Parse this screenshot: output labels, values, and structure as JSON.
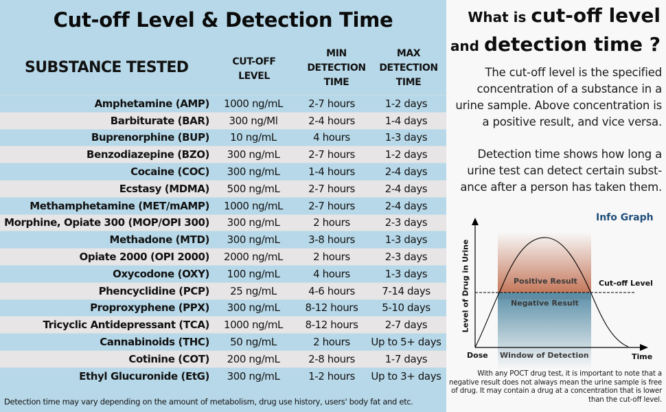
{
  "left_panel": {
    "title": "Cut-off Level & Detection Time",
    "headers": {
      "substance": "SUBSTANCE TESTED",
      "cutoff": [
        "CUT-OFF",
        "LEVEL"
      ],
      "min": [
        "MIN",
        "DETECTION",
        "TIME"
      ],
      "max": [
        "MAX",
        "DETECTION",
        "TIME"
      ]
    },
    "rows": [
      {
        "substance": "Amphetamine (AMP)",
        "cutoff": "1000 ng/mL",
        "min": "2-7 hours",
        "max": "1-2 days"
      },
      {
        "substance": "Barbiturate (BAR)",
        "cutoff": "300 ng/Ml",
        "min": "2-4 hours",
        "max": "1-4 days"
      },
      {
        "substance": "Buprenorphine (BUP)",
        "cutoff": "10 ng/mL",
        "min": "4 hours",
        "max": "1-3 days"
      },
      {
        "substance": "Benzodiazepine (BZO)",
        "cutoff": "300 ng/mL",
        "min": "2-7 hours",
        "max": "1-2 days"
      },
      {
        "substance": "Cocaine (COC)",
        "cutoff": "300 ng/mL",
        "min": "1-4 hours",
        "max": "2-4 days"
      },
      {
        "substance": "Ecstasy (MDMA)",
        "cutoff": "500 ng/mL",
        "min": "2-7 hours",
        "max": "2-4 days"
      },
      {
        "substance": "Methamphetamine (MET/mAMP)",
        "cutoff": "1000 ng/mL",
        "min": "2-7 hours",
        "max": "2-4 days"
      },
      {
        "substance": "Morphine, Opiate 300 (MOP/OPI 300)",
        "cutoff": "300 ng/mL",
        "min": "2 hours",
        "max": "2-3 days"
      },
      {
        "substance": "Methadone (MTD)",
        "cutoff": "300 ng/mL",
        "min": "3-8 hours",
        "max": "1-3 days"
      },
      {
        "substance": "Opiate 2000 (OPI 2000)",
        "cutoff": "2000 ng/mL",
        "min": "2 hours",
        "max": "2-3 days"
      },
      {
        "substance": "Oxycodone (OXY)",
        "cutoff": "100 ng/mL",
        "min": "4 hours",
        "max": "1-3 days"
      },
      {
        "substance": "Phencyclidine (PCP)",
        "cutoff": "25 ng/mL",
        "min": "4-6 hours",
        "max": "7-14 days"
      },
      {
        "substance": "Proproxyphene (PPX)",
        "cutoff": "300 ng/mL",
        "min": "8-12 hours",
        "max": "5-10 days"
      },
      {
        "substance": "Tricyclic Antidepressant (TCA)",
        "cutoff": "1000 ng/mL",
        "min": "8-12 hours",
        "max": "2-7 days"
      },
      {
        "substance": "Cannabinoids (THC)",
        "cutoff": "50 ng/mL",
        "min": "2 hours",
        "max": "Up to 5+ days"
      },
      {
        "substance": "Cotinine (COT)",
        "cutoff": "200 ng/mL",
        "min": "2-8 hours",
        "max": "1-7 days"
      },
      {
        "substance": "Ethyl Glucuronide (EtG)",
        "cutoff": "300 ng/mL",
        "min": "1-2 hours",
        "max": "Up to 3+ days"
      }
    ],
    "footnote": "Detection time may vary depending on the amount of metabolism, drug use history, users' body fat and etc."
  },
  "right_panel": {
    "question": {
      "line1_small": "What is ",
      "line1_big": "cut-off level",
      "line2_small": "and ",
      "line2_big": "detection time ?"
    },
    "paragraph1": "The cut-off level is the specified concentration of a substance in a urine sample. Above concentration is a positive result, and vice versa.",
    "paragraph2": "Detection time shows how long a urine test can detect certain subst-ance after a person has taken them.",
    "info_graph": {
      "title": "Info Graph",
      "y_axis_label": "Level of Drug in Urine",
      "x_start_label": "Dose",
      "x_end_label": "Time",
      "window_label": "Window of Detection",
      "positive_label": "Positive Result",
      "negative_label": "Negative Result",
      "cutoff_label": "Cut-off Level",
      "colors": {
        "positive": "#bf6a4a",
        "negative": "#5a8fa8",
        "title": "#1f4e79"
      }
    },
    "disclaimer": "With any POCT drug test, it is important to note that a negative result does not always mean the urine sample is free of drug. It may contain a drug at a concentration that is lower than the cut-off level."
  }
}
